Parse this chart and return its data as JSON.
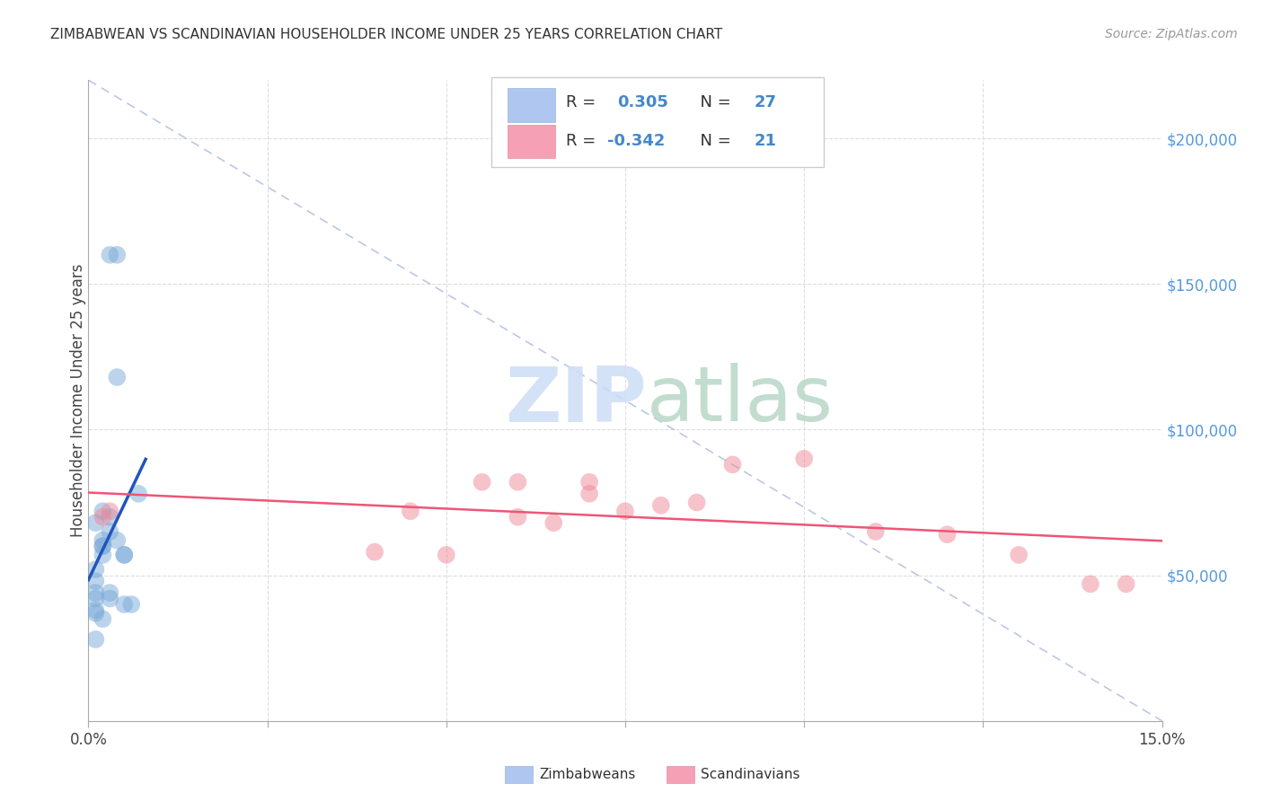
{
  "title": "ZIMBABWEAN VS SCANDINAVIAN HOUSEHOLDER INCOME UNDER 25 YEARS CORRELATION CHART",
  "source": "Source: ZipAtlas.com",
  "ylabel": "Householder Income Under 25 years",
  "xlim": [
    0.0,
    0.15
  ],
  "ylim": [
    0,
    220000
  ],
  "xtick_positions": [
    0.0,
    0.025,
    0.05,
    0.075,
    0.1,
    0.125,
    0.15
  ],
  "xticklabels": [
    "0.0%",
    "",
    "",
    "",
    "",
    "",
    "15.0%"
  ],
  "yticks_right": [
    50000,
    100000,
    150000,
    200000
  ],
  "ytick_labels_right": [
    "$50,000",
    "$100,000",
    "$150,000",
    "$200,000"
  ],
  "legend_color1": "#aec6f0",
  "legend_color2": "#f5a0b5",
  "blue_scatter_color": "#7aaad8",
  "pink_scatter_color": "#f08898",
  "trendline_blue": "#2255bb",
  "trendline_pink": "#ee5577",
  "diag_line_color": "#aabbdd",
  "grid_color": "#dddddd",
  "title_fontsize": 11,
  "source_fontsize": 10,
  "tick_fontsize": 12,
  "legend_fontsize": 13,
  "zimb_x": [
    0.003,
    0.004,
    0.001,
    0.002,
    0.001,
    0.001,
    0.002,
    0.001,
    0.003,
    0.005,
    0.002,
    0.002,
    0.001,
    0.001,
    0.001,
    0.004,
    0.003,
    0.007,
    0.005,
    0.003,
    0.003,
    0.002,
    0.004,
    0.005,
    0.001,
    0.002,
    0.006
  ],
  "zimb_y": [
    160000,
    160000,
    68000,
    72000,
    38000,
    42000,
    60000,
    48000,
    65000,
    57000,
    60000,
    62000,
    52000,
    44000,
    37000,
    118000,
    70000,
    78000,
    57000,
    42000,
    44000,
    57000,
    62000,
    40000,
    28000,
    35000,
    40000
  ],
  "scand_x": [
    0.002,
    0.003,
    0.04,
    0.045,
    0.055,
    0.06,
    0.07,
    0.075,
    0.08,
    0.09,
    0.06,
    0.1,
    0.065,
    0.12,
    0.13,
    0.14,
    0.145,
    0.07,
    0.085,
    0.11,
    0.05
  ],
  "scand_y": [
    70000,
    72000,
    58000,
    72000,
    82000,
    82000,
    78000,
    72000,
    74000,
    88000,
    70000,
    90000,
    68000,
    64000,
    57000,
    47000,
    47000,
    82000,
    75000,
    65000,
    57000
  ]
}
